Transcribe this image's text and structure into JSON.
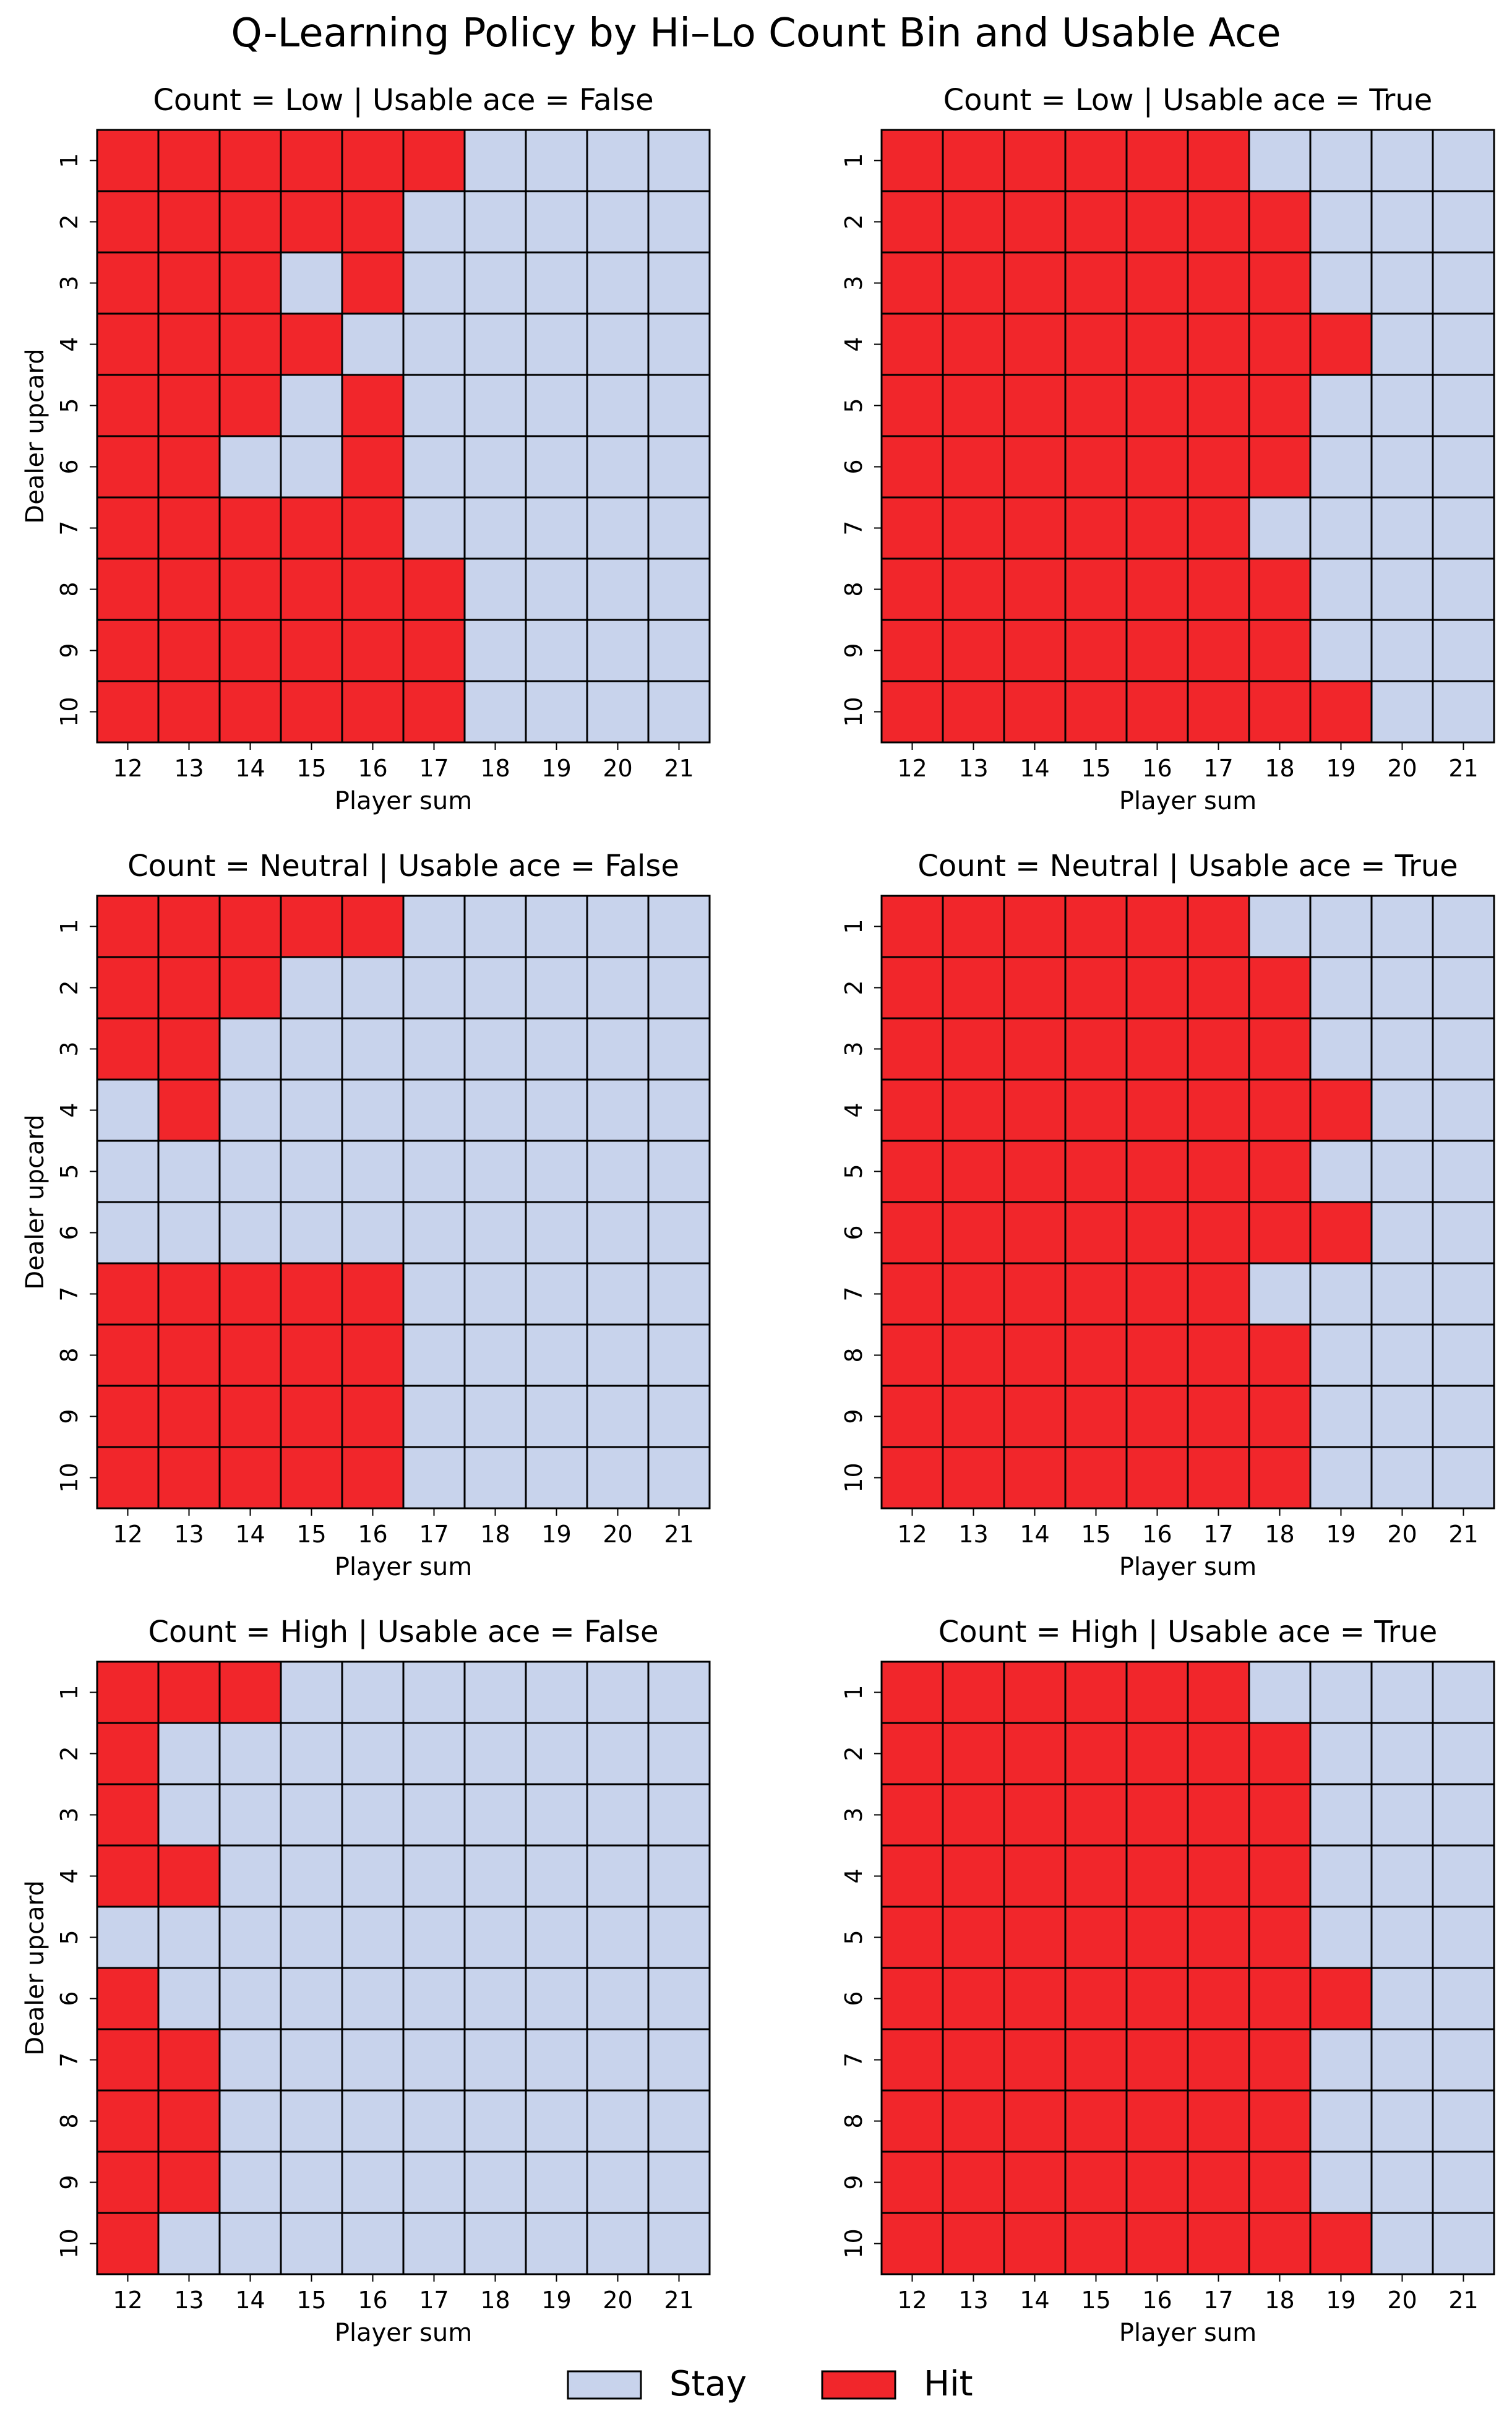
{
  "suptitle": "Q-Learning Policy by Hi–Lo Count Bin and Usable Ace",
  "legend": {
    "placement": "bottom-center",
    "items": [
      {
        "label": "Stay",
        "color": "#c8d3ec"
      },
      {
        "label": "Hit",
        "color": "#f1262b"
      }
    ]
  },
  "colors": {
    "stay": "#c8d3ec",
    "hit": "#f1262b",
    "grid_line": "#000000"
  },
  "chart_data": [
    {
      "type": "heatmap",
      "title": "Count = Low   |   Usable ace = False",
      "xlabel": "Player sum",
      "ylabel": "Dealer upcard",
      "x": [
        12,
        13,
        14,
        15,
        16,
        17,
        18,
        19,
        20,
        21
      ],
      "y": [
        1,
        2,
        3,
        4,
        5,
        6,
        7,
        8,
        9,
        10
      ],
      "value_meaning": "1 = Hit, 0 = Stay",
      "values": [
        [
          1,
          1,
          1,
          1,
          1,
          1,
          0,
          0,
          0,
          0
        ],
        [
          1,
          1,
          1,
          1,
          1,
          0,
          0,
          0,
          0,
          0
        ],
        [
          1,
          1,
          1,
          0,
          1,
          0,
          0,
          0,
          0,
          0
        ],
        [
          1,
          1,
          1,
          1,
          0,
          0,
          0,
          0,
          0,
          0
        ],
        [
          1,
          1,
          1,
          0,
          1,
          0,
          0,
          0,
          0,
          0
        ],
        [
          1,
          1,
          0,
          0,
          1,
          0,
          0,
          0,
          0,
          0
        ],
        [
          1,
          1,
          1,
          1,
          1,
          0,
          0,
          0,
          0,
          0
        ],
        [
          1,
          1,
          1,
          1,
          1,
          1,
          0,
          0,
          0,
          0
        ],
        [
          1,
          1,
          1,
          1,
          1,
          1,
          0,
          0,
          0,
          0
        ],
        [
          1,
          1,
          1,
          1,
          1,
          1,
          0,
          0,
          0,
          0
        ]
      ]
    },
    {
      "type": "heatmap",
      "title": "Count = Low   |   Usable ace = True",
      "xlabel": "Player sum",
      "ylabel": "",
      "x": [
        12,
        13,
        14,
        15,
        16,
        17,
        18,
        19,
        20,
        21
      ],
      "y": [
        1,
        2,
        3,
        4,
        5,
        6,
        7,
        8,
        9,
        10
      ],
      "value_meaning": "1 = Hit, 0 = Stay",
      "values": [
        [
          1,
          1,
          1,
          1,
          1,
          1,
          0,
          0,
          0,
          0
        ],
        [
          1,
          1,
          1,
          1,
          1,
          1,
          1,
          0,
          0,
          0
        ],
        [
          1,
          1,
          1,
          1,
          1,
          1,
          1,
          0,
          0,
          0
        ],
        [
          1,
          1,
          1,
          1,
          1,
          1,
          1,
          1,
          0,
          0
        ],
        [
          1,
          1,
          1,
          1,
          1,
          1,
          1,
          0,
          0,
          0
        ],
        [
          1,
          1,
          1,
          1,
          1,
          1,
          1,
          0,
          0,
          0
        ],
        [
          1,
          1,
          1,
          1,
          1,
          1,
          0,
          0,
          0,
          0
        ],
        [
          1,
          1,
          1,
          1,
          1,
          1,
          1,
          0,
          0,
          0
        ],
        [
          1,
          1,
          1,
          1,
          1,
          1,
          1,
          0,
          0,
          0
        ],
        [
          1,
          1,
          1,
          1,
          1,
          1,
          1,
          1,
          0,
          0
        ]
      ]
    },
    {
      "type": "heatmap",
      "title": "Count = Neutral   |   Usable ace = False",
      "xlabel": "Player sum",
      "ylabel": "Dealer upcard",
      "x": [
        12,
        13,
        14,
        15,
        16,
        17,
        18,
        19,
        20,
        21
      ],
      "y": [
        1,
        2,
        3,
        4,
        5,
        6,
        7,
        8,
        9,
        10
      ],
      "value_meaning": "1 = Hit, 0 = Stay",
      "values": [
        [
          1,
          1,
          1,
          1,
          1,
          0,
          0,
          0,
          0,
          0
        ],
        [
          1,
          1,
          1,
          0,
          0,
          0,
          0,
          0,
          0,
          0
        ],
        [
          1,
          1,
          0,
          0,
          0,
          0,
          0,
          0,
          0,
          0
        ],
        [
          0,
          1,
          0,
          0,
          0,
          0,
          0,
          0,
          0,
          0
        ],
        [
          0,
          0,
          0,
          0,
          0,
          0,
          0,
          0,
          0,
          0
        ],
        [
          0,
          0,
          0,
          0,
          0,
          0,
          0,
          0,
          0,
          0
        ],
        [
          1,
          1,
          1,
          1,
          1,
          0,
          0,
          0,
          0,
          0
        ],
        [
          1,
          1,
          1,
          1,
          1,
          0,
          0,
          0,
          0,
          0
        ],
        [
          1,
          1,
          1,
          1,
          1,
          0,
          0,
          0,
          0,
          0
        ],
        [
          1,
          1,
          1,
          1,
          1,
          0,
          0,
          0,
          0,
          0
        ]
      ]
    },
    {
      "type": "heatmap",
      "title": "Count = Neutral   |   Usable ace = True",
      "xlabel": "Player sum",
      "ylabel": "",
      "x": [
        12,
        13,
        14,
        15,
        16,
        17,
        18,
        19,
        20,
        21
      ],
      "y": [
        1,
        2,
        3,
        4,
        5,
        6,
        7,
        8,
        9,
        10
      ],
      "value_meaning": "1 = Hit, 0 = Stay",
      "values": [
        [
          1,
          1,
          1,
          1,
          1,
          1,
          0,
          0,
          0,
          0
        ],
        [
          1,
          1,
          1,
          1,
          1,
          1,
          1,
          0,
          0,
          0
        ],
        [
          1,
          1,
          1,
          1,
          1,
          1,
          1,
          0,
          0,
          0
        ],
        [
          1,
          1,
          1,
          1,
          1,
          1,
          1,
          1,
          0,
          0
        ],
        [
          1,
          1,
          1,
          1,
          1,
          1,
          1,
          0,
          0,
          0
        ],
        [
          1,
          1,
          1,
          1,
          1,
          1,
          1,
          1,
          0,
          0
        ],
        [
          1,
          1,
          1,
          1,
          1,
          1,
          0,
          0,
          0,
          0
        ],
        [
          1,
          1,
          1,
          1,
          1,
          1,
          1,
          0,
          0,
          0
        ],
        [
          1,
          1,
          1,
          1,
          1,
          1,
          1,
          0,
          0,
          0
        ],
        [
          1,
          1,
          1,
          1,
          1,
          1,
          1,
          0,
          0,
          0
        ]
      ]
    },
    {
      "type": "heatmap",
      "title": "Count = High   |   Usable ace = False",
      "xlabel": "Player sum",
      "ylabel": "Dealer upcard",
      "x": [
        12,
        13,
        14,
        15,
        16,
        17,
        18,
        19,
        20,
        21
      ],
      "y": [
        1,
        2,
        3,
        4,
        5,
        6,
        7,
        8,
        9,
        10
      ],
      "value_meaning": "1 = Hit, 0 = Stay",
      "values": [
        [
          1,
          1,
          1,
          0,
          0,
          0,
          0,
          0,
          0,
          0
        ],
        [
          1,
          0,
          0,
          0,
          0,
          0,
          0,
          0,
          0,
          0
        ],
        [
          1,
          0,
          0,
          0,
          0,
          0,
          0,
          0,
          0,
          0
        ],
        [
          1,
          1,
          0,
          0,
          0,
          0,
          0,
          0,
          0,
          0
        ],
        [
          0,
          0,
          0,
          0,
          0,
          0,
          0,
          0,
          0,
          0
        ],
        [
          1,
          0,
          0,
          0,
          0,
          0,
          0,
          0,
          0,
          0
        ],
        [
          1,
          1,
          0,
          0,
          0,
          0,
          0,
          0,
          0,
          0
        ],
        [
          1,
          1,
          0,
          0,
          0,
          0,
          0,
          0,
          0,
          0
        ],
        [
          1,
          1,
          0,
          0,
          0,
          0,
          0,
          0,
          0,
          0
        ],
        [
          1,
          0,
          0,
          0,
          0,
          0,
          0,
          0,
          0,
          0
        ]
      ]
    },
    {
      "type": "heatmap",
      "title": "Count = High   |   Usable ace = True",
      "xlabel": "Player sum",
      "ylabel": "",
      "x": [
        12,
        13,
        14,
        15,
        16,
        17,
        18,
        19,
        20,
        21
      ],
      "y": [
        1,
        2,
        3,
        4,
        5,
        6,
        7,
        8,
        9,
        10
      ],
      "value_meaning": "1 = Hit, 0 = Stay",
      "values": [
        [
          1,
          1,
          1,
          1,
          1,
          1,
          0,
          0,
          0,
          0
        ],
        [
          1,
          1,
          1,
          1,
          1,
          1,
          1,
          0,
          0,
          0
        ],
        [
          1,
          1,
          1,
          1,
          1,
          1,
          1,
          0,
          0,
          0
        ],
        [
          1,
          1,
          1,
          1,
          1,
          1,
          1,
          0,
          0,
          0
        ],
        [
          1,
          1,
          1,
          1,
          1,
          1,
          1,
          0,
          0,
          0
        ],
        [
          1,
          1,
          1,
          1,
          1,
          1,
          1,
          1,
          0,
          0
        ],
        [
          1,
          1,
          1,
          1,
          1,
          1,
          1,
          0,
          0,
          0
        ],
        [
          1,
          1,
          1,
          1,
          1,
          1,
          1,
          0,
          0,
          0
        ],
        [
          1,
          1,
          1,
          1,
          1,
          1,
          1,
          0,
          0,
          0
        ],
        [
          1,
          1,
          1,
          1,
          1,
          1,
          1,
          1,
          0,
          0
        ]
      ]
    }
  ]
}
